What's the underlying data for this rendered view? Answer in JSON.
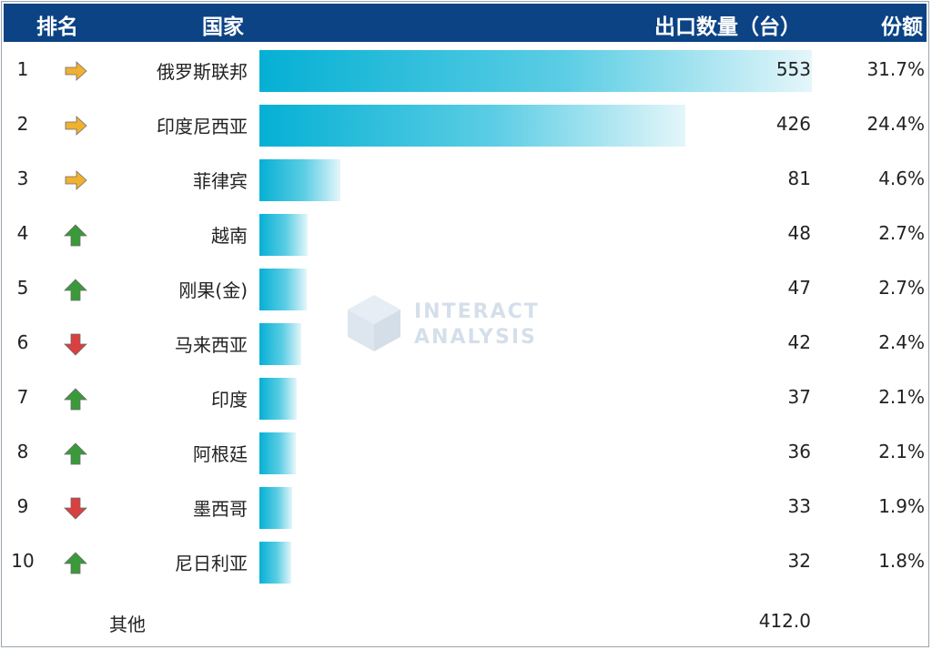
{
  "header": {
    "rank": "排名",
    "country": "国家",
    "exports": "出口数量（台）",
    "share": "份额"
  },
  "chart_data": {
    "type": "bar",
    "orientation": "horizontal",
    "categories": [
      "俄罗斯联邦",
      "印度尼西亚",
      "菲律宾",
      "越南",
      "刚果(金)",
      "马来西亚",
      "印度",
      "阿根廷",
      "墨西哥",
      "尼日利亚"
    ],
    "values": [
      553,
      426,
      81,
      48,
      47,
      42,
      37,
      36,
      33,
      32
    ],
    "value_labels": [
      "553",
      "426",
      "81",
      "48",
      "47",
      "42",
      "37",
      "36",
      "33",
      "32"
    ],
    "xlim": [
      0,
      553
    ],
    "grid": false,
    "rows": [
      {
        "rank": "1",
        "trend": "flat",
        "country": "俄罗斯联邦",
        "value": 553,
        "value_label": "553",
        "share": "31.7%"
      },
      {
        "rank": "2",
        "trend": "flat",
        "country": "印度尼西亚",
        "value": 426,
        "value_label": "426",
        "share": "24.4%"
      },
      {
        "rank": "3",
        "trend": "flat",
        "country": "菲律宾",
        "value": 81,
        "value_label": "81",
        "share": "4.6%"
      },
      {
        "rank": "4",
        "trend": "up",
        "country": "越南",
        "value": 48,
        "value_label": "48",
        "share": "2.7%"
      },
      {
        "rank": "5",
        "trend": "up",
        "country": "刚果(金)",
        "value": 47,
        "value_label": "47",
        "share": "2.7%"
      },
      {
        "rank": "6",
        "trend": "down",
        "country": "马来西亚",
        "value": 42,
        "value_label": "42",
        "share": "2.4%"
      },
      {
        "rank": "7",
        "trend": "up",
        "country": "印度",
        "value": 37,
        "value_label": "37",
        "share": "2.1%"
      },
      {
        "rank": "8",
        "trend": "up",
        "country": "阿根廷",
        "value": 36,
        "value_label": "36",
        "share": "2.1%"
      },
      {
        "rank": "9",
        "trend": "down",
        "country": "墨西哥",
        "value": 33,
        "value_label": "33",
        "share": "1.9%"
      },
      {
        "rank": "10",
        "trend": "up",
        "country": "尼日利亚",
        "value": 32,
        "value_label": "32",
        "share": "1.8%"
      }
    ],
    "other": {
      "label": "其他",
      "value_label": "412.0"
    }
  },
  "watermark": {
    "line1": "INTERACT",
    "line2": "ANALYSIS"
  },
  "colors": {
    "header_bg": "#0b4384",
    "bar_start": "#05b0d4",
    "bar_end": "#e4f6fa",
    "arrow_flat": "#f0b030",
    "arrow_up": "#3a9a3a",
    "arrow_down": "#d94040"
  },
  "icons": {
    "flat": "arrow-right-icon",
    "up": "arrow-up-icon",
    "down": "arrow-down-icon"
  }
}
